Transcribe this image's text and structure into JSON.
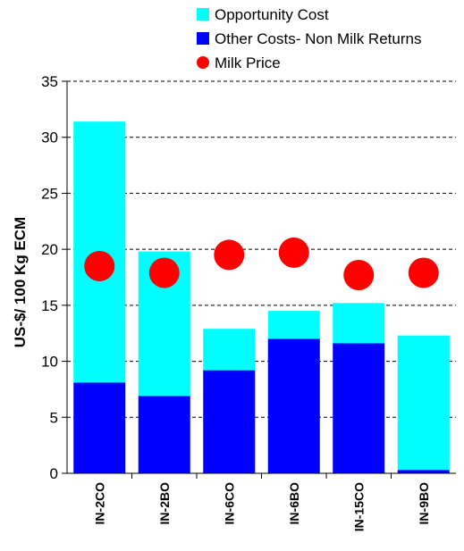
{
  "chart_data": {
    "type": "bar",
    "stacked": true,
    "title": "",
    "xlabel": "",
    "ylabel": "US-$/ 100 Kg ECM",
    "ylim": [
      0,
      35
    ],
    "yticks": [
      0,
      5,
      10,
      15,
      20,
      25,
      30,
      35
    ],
    "grid": "horizontal-dashed",
    "legend_position": "top",
    "categories": [
      "IN-2CO",
      "IN-2BO",
      "IN-6CO",
      "IN-6BO",
      "IN-15CO",
      "IN-9BO"
    ],
    "series": [
      {
        "name": "Opportunity Cost",
        "kind": "bar",
        "color": "#00FFFF",
        "values": [
          23.3,
          12.9,
          3.7,
          2.5,
          3.6,
          12.0
        ]
      },
      {
        "name": "Other Costs- Non Milk Returns",
        "kind": "bar",
        "color": "#0000FF",
        "values": [
          8.1,
          6.9,
          9.2,
          12.0,
          11.6,
          0.3
        ]
      },
      {
        "name": "Milk Price",
        "kind": "marker",
        "color": "#FF0000",
        "values": [
          18.5,
          17.9,
          19.5,
          19.7,
          17.7,
          17.9
        ]
      }
    ]
  }
}
